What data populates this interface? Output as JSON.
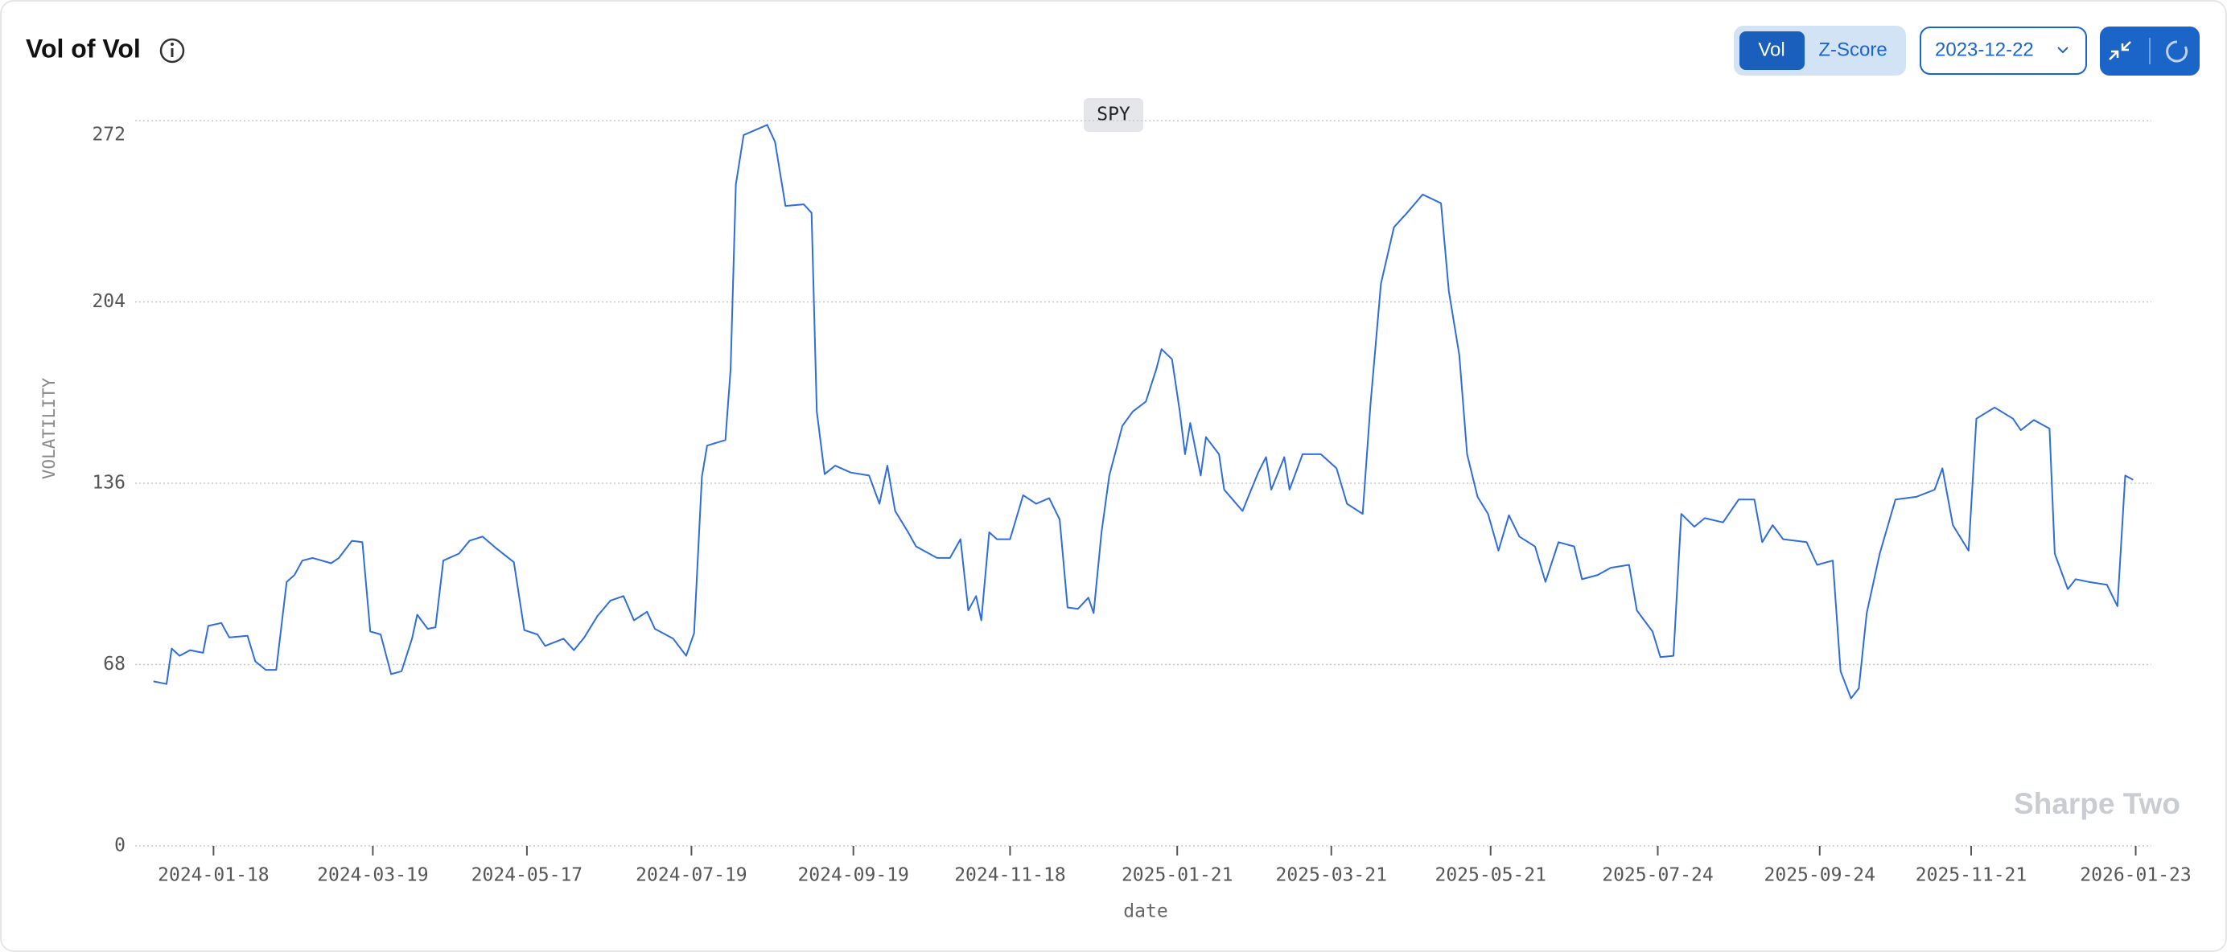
{
  "header": {
    "title": "Vol of Vol",
    "toggle": [
      "Vol",
      "Z-Score"
    ],
    "date_picker": "2023-12-22",
    "watermark": "Sharpe Two"
  },
  "chart_data": {
    "type": "line",
    "xlabel": "date",
    "ylabel": "VOLATILITY",
    "x": [
      "2023-12-26",
      "2023-12-31",
      "2024-01-02",
      "2024-01-05",
      "2024-01-09",
      "2024-01-14",
      "2024-01-16",
      "2024-01-21",
      "2024-01-24",
      "2024-01-31",
      "2024-02-03",
      "2024-02-07",
      "2024-02-11",
      "2024-02-15",
      "2024-02-18",
      "2024-02-21",
      "2024-02-25",
      "2024-03-03",
      "2024-03-06",
      "2024-03-11",
      "2024-03-15",
      "2024-03-18",
      "2024-03-22",
      "2024-03-26",
      "2024-03-30",
      "2024-04-03",
      "2024-04-05",
      "2024-04-09",
      "2024-04-12",
      "2024-04-15",
      "2024-04-21",
      "2024-04-25",
      "2024-04-30",
      "2024-05-05",
      "2024-05-12",
      "2024-05-16",
      "2024-05-21",
      "2024-05-24",
      "2024-05-31",
      "2024-06-04",
      "2024-06-08",
      "2024-06-13",
      "2024-06-18",
      "2024-06-23",
      "2024-06-27",
      "2024-07-02",
      "2024-07-05",
      "2024-07-12",
      "2024-07-17",
      "2024-07-20",
      "2024-07-23",
      "2024-07-25",
      "2024-08-01",
      "2024-08-03",
      "2024-08-05",
      "2024-08-08",
      "2024-08-17",
      "2024-08-20",
      "2024-08-24",
      "2024-08-31",
      "2024-09-03",
      "2024-09-05",
      "2024-09-08",
      "2024-09-12",
      "2024-09-18",
      "2024-09-25",
      "2024-09-29",
      "2024-10-02",
      "2024-10-05",
      "2024-10-10",
      "2024-10-13",
      "2024-10-21",
      "2024-10-26",
      "2024-10-30",
      "2024-11-02",
      "2024-11-05",
      "2024-11-07",
      "2024-11-10",
      "2024-11-13",
      "2024-11-18",
      "2024-11-23",
      "2024-11-28",
      "2024-12-03",
      "2024-12-07",
      "2024-12-10",
      "2024-12-14",
      "2024-12-18",
      "2024-12-20",
      "2024-12-23",
      "2024-12-26",
      "2024-12-31",
      "2025-01-04",
      "2025-01-09",
      "2025-01-13",
      "2025-01-15",
      "2025-01-19",
      "2025-01-22",
      "2025-01-24",
      "2025-01-26",
      "2025-01-30",
      "2025-02-01",
      "2025-02-06",
      "2025-02-08",
      "2025-02-15",
      "2025-02-21",
      "2025-02-24",
      "2025-02-26",
      "2025-03-03",
      "2025-03-05",
      "2025-03-10",
      "2025-03-17",
      "2025-03-23",
      "2025-03-27",
      "2025-04-02",
      "2025-04-05",
      "2025-04-09",
      "2025-04-14",
      "2025-04-19",
      "2025-04-25",
      "2025-05-02",
      "2025-05-05",
      "2025-05-09",
      "2025-05-12",
      "2025-05-16",
      "2025-05-20",
      "2025-05-24",
      "2025-05-28",
      "2025-06-01",
      "2025-06-07",
      "2025-06-11",
      "2025-06-16",
      "2025-06-22",
      "2025-06-25",
      "2025-07-01",
      "2025-07-06",
      "2025-07-13",
      "2025-07-16",
      "2025-07-22",
      "2025-07-25",
      "2025-07-30",
      "2025-08-02",
      "2025-08-07",
      "2025-08-11",
      "2025-08-18",
      "2025-08-24",
      "2025-08-30",
      "2025-09-02",
      "2025-09-06",
      "2025-09-10",
      "2025-09-19",
      "2025-09-23",
      "2025-09-29",
      "2025-10-02",
      "2025-10-06",
      "2025-10-09",
      "2025-10-12",
      "2025-10-17",
      "2025-10-23",
      "2025-10-31",
      "2025-11-07",
      "2025-11-10",
      "2025-11-14",
      "2025-11-20",
      "2025-11-23",
      "2025-11-30",
      "2025-12-07",
      "2025-12-10",
      "2025-12-15",
      "2025-12-21",
      "2025-12-23",
      "2025-12-28",
      "2025-12-31",
      "2026-01-05",
      "2026-01-12",
      "2026-01-16",
      "2026-01-19",
      "2026-01-22"
    ],
    "series": [
      {
        "name": "SPY",
        "color": "#2e6ddb",
        "values": [
          61.7,
          60.7,
          74,
          71.3,
          73.4,
          72.4,
          82.5,
          83.6,
          78.2,
          78.8,
          69.2,
          66,
          66,
          99,
          101.6,
          107,
          108,
          106,
          108,
          114.4,
          113.9,
          80.4,
          79.3,
          64.4,
          65.5,
          77.7,
          86.7,
          81.4,
          82,
          107,
          109.6,
          114.4,
          116,
          111.8,
          106.4,
          80.9,
          79.3,
          75,
          77.7,
          73.4,
          78.2,
          86.2,
          92,
          93.7,
          84.6,
          87.8,
          81.4,
          77.7,
          71.3,
          79.8,
          138.4,
          150.1,
          152.2,
          178.8,
          248,
          266.6,
          270.4,
          264,
          240,
          240.6,
          237.4,
          162.9,
          139.4,
          142.6,
          140,
          138.9,
          128.3,
          142.6,
          125.6,
          117.6,
          112.3,
          108,
          108,
          115,
          88.3,
          93.7,
          84.6,
          117.6,
          115,
          115,
          131.5,
          128.3,
          130.4,
          122.4,
          89.4,
          88.9,
          93.1,
          87.3,
          117.6,
          138.9,
          157.5,
          162.9,
          166.6,
          178.8,
          186.3,
          182.5,
          162.9,
          146.9,
          158.6,
          138.9,
          153.3,
          146.9,
          133.6,
          125.6,
          140,
          145.8,
          133.6,
          145.8,
          133.6,
          146.9,
          146.9,
          141.6,
          128.3,
          124.5,
          165.5,
          210.8,
          232,
          237.4,
          244.3,
          241,
          208,
          184.1,
          146.9,
          130.9,
          124.5,
          110.7,
          124,
          116,
          112.3,
          99,
          113.9,
          112.3,
          100,
          101.6,
          104.3,
          105.4,
          88.3,
          80.4,
          70.8,
          71.3,
          124.5,
          119.7,
          122.9,
          121.3,
          129.9,
          129.9,
          113.9,
          120.3,
          115,
          113.9,
          105.4,
          107,
          65.5,
          55.3,
          59.1,
          87.3,
          109.6,
          129.9,
          130.9,
          133.6,
          141.6,
          120.3,
          110.7,
          160.2,
          164.4,
          160.2,
          155.9,
          159.7,
          156.5,
          109.6,
          96.3,
          100,
          99,
          97.9,
          89.9,
          138.9,
          137.3
        ]
      }
    ],
    "xlim": [
      "2023-12-19",
      "2026-01-29"
    ],
    "xticks": [
      "2024-01-18",
      "2024-03-19",
      "2024-05-17",
      "2024-07-19",
      "2024-09-19",
      "2024-11-18",
      "2025-01-21",
      "2025-03-21",
      "2025-05-21",
      "2025-07-24",
      "2025-09-24",
      "2025-11-21",
      "2026-01-23"
    ],
    "ylim": [
      0,
      272
    ],
    "yticks": [
      0,
      68,
      136,
      204,
      272
    ],
    "grid": true
  }
}
